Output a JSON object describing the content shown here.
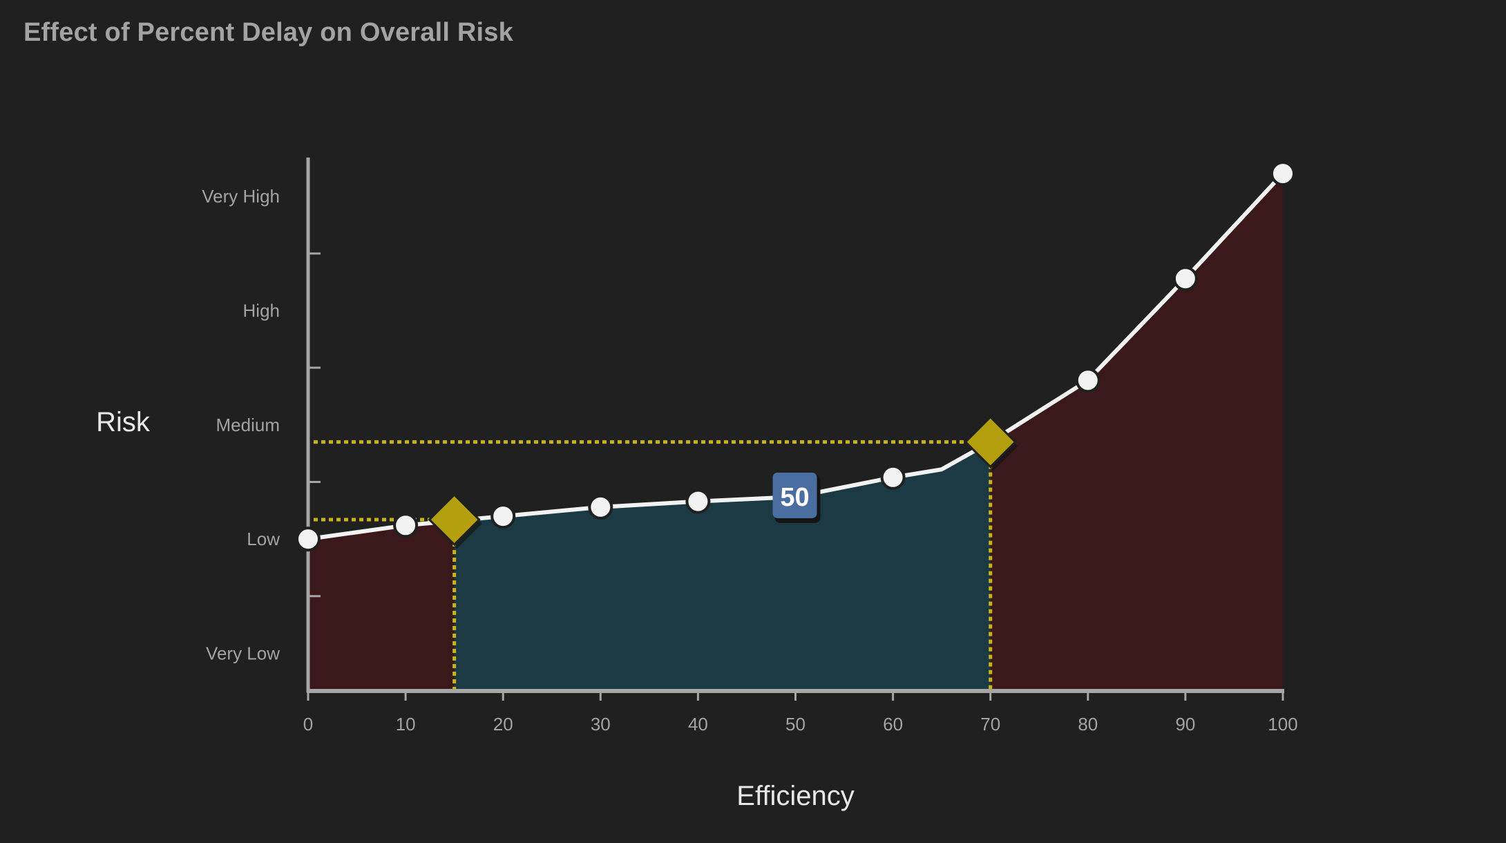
{
  "title": "Effect of Percent Delay on Overall Risk",
  "chart_data": {
    "type": "area",
    "title": "Effect of Percent Delay on Overall Risk",
    "xlabel": "Efficiency",
    "ylabel": "Risk",
    "xlim": [
      0,
      100
    ],
    "xticks": [
      0,
      10,
      20,
      30,
      40,
      50,
      60,
      70,
      80,
      90,
      100
    ],
    "ylim": [
      0,
      4.67
    ],
    "ytick_labels": [
      {
        "value": 0.33,
        "label": "Very Low"
      },
      {
        "value": 1.33,
        "label": "Low"
      },
      {
        "value": 2.33,
        "label": "Medium"
      },
      {
        "value": 3.33,
        "label": "High"
      },
      {
        "value": 4.33,
        "label": "Very High"
      }
    ],
    "ytick_marks": [
      0.83,
      1.83,
      2.83,
      3.83
    ],
    "series": [
      {
        "x": [
          0,
          10,
          20,
          30,
          40,
          50,
          60,
          65,
          70,
          80,
          90,
          100
        ],
        "y": [
          1.33,
          1.45,
          1.53,
          1.61,
          1.66,
          1.7,
          1.87,
          1.94,
          2.18,
          2.72,
          3.61,
          4.53
        ],
        "marker_x": [
          0,
          10,
          20,
          30,
          40,
          60,
          80,
          90,
          100
        ]
      }
    ],
    "regions": [
      {
        "from": 0,
        "to": 15,
        "color": "#3b191a"
      },
      {
        "from": 15,
        "to": 70,
        "color": "#1b3a44"
      },
      {
        "from": 70,
        "to": 100,
        "color": "#3b191a"
      }
    ],
    "highlight_points": [
      {
        "x": 15,
        "y": 1.5
      },
      {
        "x": 70,
        "y": 2.18
      }
    ],
    "tag": {
      "x": 50,
      "y": 1.7,
      "label": "50"
    },
    "colors": {
      "background": "#202020",
      "line": "#f2f2f2",
      "marker_fill": "#f2f2f2",
      "highlight": "#b4a00f",
      "guide": "#c8b417",
      "axis": "#a6a6a6",
      "tag_fill": "#4a6ea0"
    },
    "grid": false,
    "legend": "none"
  }
}
